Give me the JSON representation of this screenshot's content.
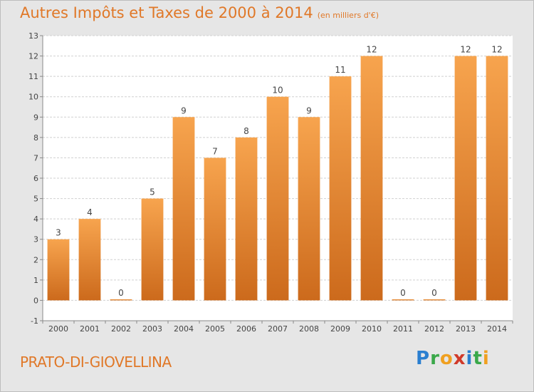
{
  "title": "Autres Impôts et Taxes de 2000 à 2014",
  "unit": "(en milliers d'€)",
  "location": "PRATO-DI-GIOVELLINA",
  "logo": "Proxiti",
  "colors": {
    "bar_light": "#f7a44e",
    "bar_dark": "#cc6a1c",
    "text_orange": "#e07828",
    "background": "#e6e6e6",
    "plot_background": "#ffffff"
  },
  "chart_data": {
    "type": "bar",
    "title": "Autres Impôts et Taxes de 2000 à 2014",
    "subtitle": "(en milliers d'€)",
    "categories": [
      "2000",
      "2001",
      "2002",
      "2003",
      "2004",
      "2005",
      "2006",
      "2007",
      "2008",
      "2009",
      "2010",
      "2011",
      "2012",
      "2013",
      "2014"
    ],
    "values": [
      3,
      4,
      0,
      5,
      9,
      7,
      8,
      10,
      9,
      11,
      12,
      0,
      0,
      12,
      12
    ],
    "data_labels": [
      "3",
      "4",
      "0",
      "5",
      "9",
      "7",
      "8",
      "10",
      "9",
      "11",
      "12",
      "0",
      "0",
      "12",
      "12"
    ],
    "ylim": [
      -1,
      13
    ],
    "yticks": [
      -1,
      0,
      1,
      2,
      3,
      4,
      5,
      6,
      7,
      8,
      9,
      10,
      11,
      12,
      13
    ],
    "ytick_labels": [
      "-1",
      "0",
      "1",
      "2",
      "3",
      "4",
      "5",
      "6",
      "7",
      "8",
      "9",
      "10",
      "11",
      "12",
      "13"
    ],
    "grid": true
  }
}
